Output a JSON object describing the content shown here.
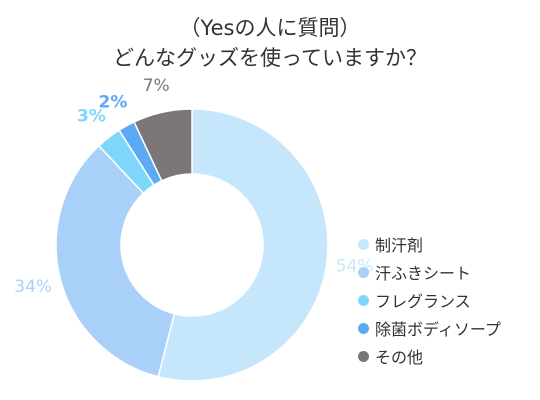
{
  "chart_data": {
    "type": "pie",
    "donut": true,
    "title_lines": [
      "（Yesの人に質問）",
      "どんなグッズを使っていますか？"
    ],
    "categories": [
      "制汗剤",
      "汗ふきシート",
      "フレグランス",
      "除菌ボディソープ",
      "その他"
    ],
    "values": [
      54,
      34,
      3,
      2,
      7
    ],
    "value_labels": [
      "54%",
      "34%",
      "3%",
      "2%",
      "7%"
    ],
    "colors": [
      "#c6e7fb",
      "#a9d0f8",
      "#7fd6fb",
      "#5aabf4",
      "#7b7677"
    ],
    "label_colors": [
      "#c6e7fb",
      "#a9d0f8",
      "#7fd6fb",
      "#5aabf4",
      "#7b7677"
    ],
    "legend_position": "right",
    "start_angle": "top",
    "direction": "clockwise"
  }
}
